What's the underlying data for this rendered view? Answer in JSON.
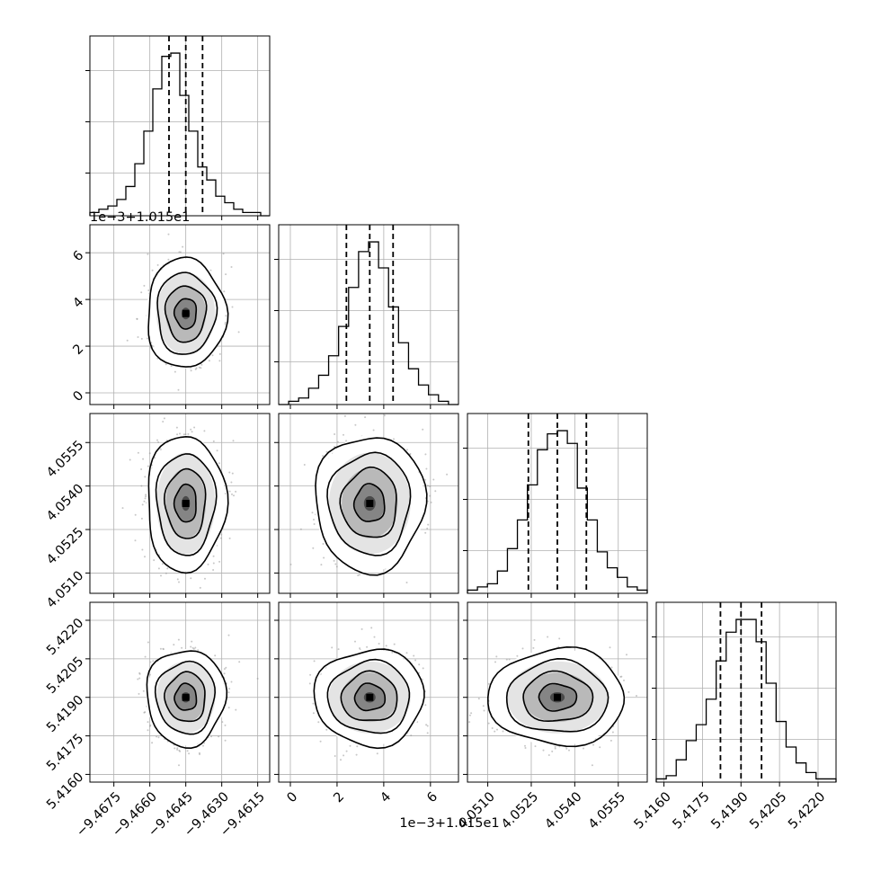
{
  "chart_data": {
    "type": "corner",
    "grid": true,
    "quantile_lines": "dashed (16th, 50th, 84th percentiles)",
    "color": "#000000",
    "parameters": [
      {
        "ticks": [
          "−9.4675",
          "−9.4660",
          "−9.4645",
          "−9.4630",
          "−9.4615"
        ],
        "tick_values": [
          -9.4675,
          -9.466,
          -9.4645,
          -9.463,
          -9.4615
        ],
        "range": [
          -9.4685,
          -9.461
        ],
        "quantiles": [
          -9.4652,
          -9.4645,
          -9.4638
        ],
        "hist_counts": [
          1,
          2,
          3,
          5,
          9,
          16,
          26,
          39,
          49,
          50,
          37,
          26,
          15,
          11,
          6,
          4,
          2,
          1,
          1,
          0
        ]
      },
      {
        "offset_label": "1e−3+1.015e1",
        "ticks": [
          "0",
          "2",
          "4",
          "6"
        ],
        "tick_values": [
          0,
          2,
          4,
          6
        ],
        "range": [
          -0.5,
          7.2
        ],
        "quantiles": [
          2.4,
          3.4,
          4.4
        ],
        "hist_counts": [
          0,
          1,
          2,
          5,
          9,
          15,
          24,
          36,
          47,
          50,
          42,
          30,
          19,
          11,
          6,
          3,
          1,
          0
        ]
      },
      {
        "ticks": [
          "4.0510",
          "4.0525",
          "4.0540",
          "4.0555"
        ],
        "tick_values": [
          4.051,
          4.0525,
          4.054,
          4.0555
        ],
        "range": [
          4.0503,
          4.0565
        ],
        "quantiles": [
          4.0524,
          4.0534,
          4.0544
        ],
        "hist_counts": [
          1,
          2,
          3,
          7,
          14,
          23,
          34,
          45,
          50,
          51,
          47,
          33,
          23,
          13,
          8,
          5,
          2,
          1
        ]
      },
      {
        "ticks": [
          "5.4160",
          "5.4175",
          "5.4190",
          "5.4205",
          "5.4220"
        ],
        "tick_values": [
          5.416,
          5.4175,
          5.419,
          5.4205,
          5.422
        ],
        "range": [
          5.4157,
          5.4227
        ],
        "quantiles": [
          5.4182,
          5.419,
          5.4198
        ],
        "hist_counts": [
          1,
          2,
          7,
          13,
          18,
          26,
          38,
          47,
          51,
          51,
          44,
          31,
          19,
          11,
          6,
          3,
          1,
          1
        ]
      }
    ],
    "contour_levels": 4
  }
}
